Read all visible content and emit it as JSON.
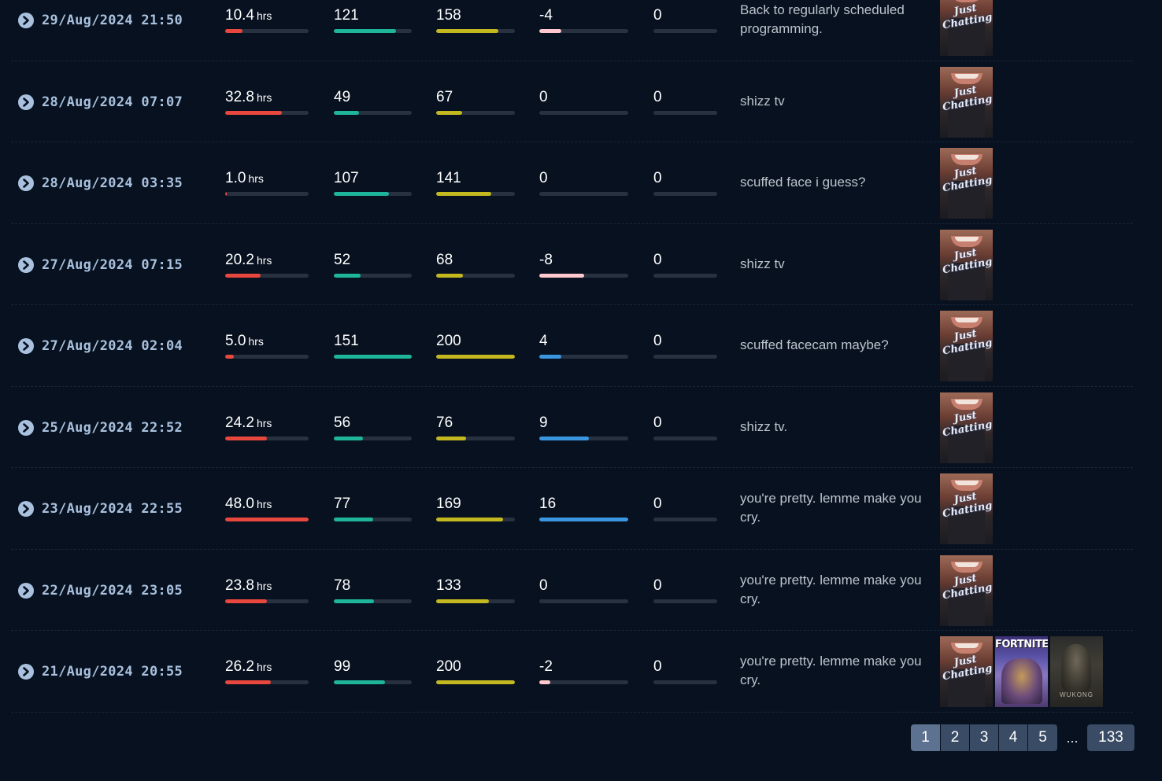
{
  "colors": {
    "hours": "#e8473d",
    "avg_viewers": "#1fb59b",
    "peak_viewers": "#c3b820",
    "diff_positive": "#3b96e0",
    "diff_negative": "#ffc8cf",
    "zero": "#27313f"
  },
  "streams": [
    {
      "date": "29/Aug/2024 21:50",
      "hours": "10.4",
      "hours_unit": "hrs",
      "hours_frac": 0.21,
      "avg": "121",
      "avg_frac": 0.8,
      "peak": "158",
      "peak_frac": 0.79,
      "diff": "-4",
      "diff_frac": 0.25,
      "diff_sign": "negative",
      "followers": "0",
      "title": "Back to regularly scheduled programming.",
      "games": [
        "just-chatting"
      ]
    },
    {
      "date": "28/Aug/2024 07:07",
      "hours": "32.8",
      "hours_unit": "hrs",
      "hours_frac": 0.68,
      "avg": "49",
      "avg_frac": 0.32,
      "peak": "67",
      "peak_frac": 0.33,
      "diff": "0",
      "diff_frac": 0,
      "diff_sign": "zero",
      "followers": "0",
      "title": "shizz tv",
      "games": [
        "just-chatting"
      ]
    },
    {
      "date": "28/Aug/2024 03:35",
      "hours": "1.0",
      "hours_unit": "hrs",
      "hours_frac": 0.02,
      "avg": "107",
      "avg_frac": 0.71,
      "peak": "141",
      "peak_frac": 0.7,
      "diff": "0",
      "diff_frac": 0,
      "diff_sign": "zero",
      "followers": "0",
      "title": "scuffed face i guess?",
      "games": [
        "just-chatting"
      ]
    },
    {
      "date": "27/Aug/2024 07:15",
      "hours": "20.2",
      "hours_unit": "hrs",
      "hours_frac": 0.42,
      "avg": "52",
      "avg_frac": 0.34,
      "peak": "68",
      "peak_frac": 0.34,
      "diff": "-8",
      "diff_frac": 0.5,
      "diff_sign": "negative",
      "followers": "0",
      "title": "shizz tv",
      "games": [
        "just-chatting"
      ]
    },
    {
      "date": "27/Aug/2024 02:04",
      "hours": "5.0",
      "hours_unit": "hrs",
      "hours_frac": 0.1,
      "avg": "151",
      "avg_frac": 1.0,
      "peak": "200",
      "peak_frac": 1.0,
      "diff": "4",
      "diff_frac": 0.25,
      "diff_sign": "positive",
      "followers": "0",
      "title": "scuffed facecam maybe?",
      "games": [
        "just-chatting"
      ]
    },
    {
      "date": "25/Aug/2024 22:52",
      "hours": "24.2",
      "hours_unit": "hrs",
      "hours_frac": 0.5,
      "avg": "56",
      "avg_frac": 0.37,
      "peak": "76",
      "peak_frac": 0.38,
      "diff": "9",
      "diff_frac": 0.56,
      "diff_sign": "positive",
      "followers": "0",
      "title": "shizz tv.",
      "games": [
        "just-chatting"
      ]
    },
    {
      "date": "23/Aug/2024 22:55",
      "hours": "48.0",
      "hours_unit": "hrs",
      "hours_frac": 1.0,
      "avg": "77",
      "avg_frac": 0.51,
      "peak": "169",
      "peak_frac": 0.85,
      "diff": "16",
      "diff_frac": 1.0,
      "diff_sign": "positive",
      "followers": "0",
      "title": "you're pretty. lemme make you cry.",
      "games": [
        "just-chatting"
      ]
    },
    {
      "date": "22/Aug/2024 23:05",
      "hours": "23.8",
      "hours_unit": "hrs",
      "hours_frac": 0.5,
      "avg": "78",
      "avg_frac": 0.52,
      "peak": "133",
      "peak_frac": 0.67,
      "diff": "0",
      "diff_frac": 0,
      "diff_sign": "zero",
      "followers": "0",
      "title": "you're pretty. lemme make you cry.",
      "games": [
        "just-chatting"
      ]
    },
    {
      "date": "21/Aug/2024 20:55",
      "hours": "26.2",
      "hours_unit": "hrs",
      "hours_frac": 0.55,
      "avg": "99",
      "avg_frac": 0.66,
      "peak": "200",
      "peak_frac": 1.0,
      "diff": "-2",
      "diff_frac": 0.12,
      "diff_sign": "negative",
      "followers": "0",
      "title": "you're pretty. lemme make you cry.",
      "games": [
        "just-chatting",
        "fortnite",
        "black-myth-wukong"
      ]
    }
  ],
  "thumb_text": {
    "just-chatting": "Just Chatting",
    "fortnite": "FORTNITE",
    "black-myth-wukong": "WUKONG"
  },
  "pagination": {
    "pages": [
      "1",
      "2",
      "3",
      "4",
      "5"
    ],
    "active": "1",
    "ellipsis": "...",
    "last": "133"
  }
}
